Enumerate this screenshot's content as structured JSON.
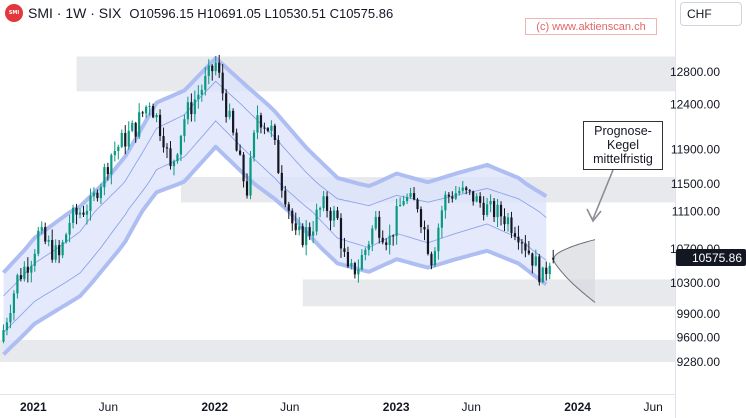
{
  "header": {
    "logo_text": "SMI",
    "symbol": "SMI · 1W · SIX",
    "ohlc": "O10596.15 H10691.05 L10530.51 C10575.86"
  },
  "watermark": "(c) www.aktienscan.ch",
  "currency_label": "CHF",
  "annotation": {
    "line1": "Prognose-",
    "line2": "Kegel",
    "line3": "mittelfristig"
  },
  "colors": {
    "up": "#089981",
    "down": "#131722",
    "band_fill": "#dbe3fb",
    "band_edge": "#aebef3",
    "zone": "#e4e5ea",
    "price_label_bg": "#131722"
  },
  "chart_data": {
    "type": "candlestick",
    "interval": "1W",
    "instrument": "SMI",
    "exchange": "SIX",
    "currency": "CHF",
    "last_price_label": "10575.86",
    "y_ticks": [
      "12800.00",
      "12400.00",
      "11900.00",
      "11500.00",
      "11100.00",
      "10700.00",
      "10300.00",
      "9900.00",
      "9600.00",
      "9280.00"
    ],
    "x_ticks": [
      "2021",
      "Jun",
      "2022",
      "Jun",
      "2023",
      "Jun",
      "2024",
      "Jun"
    ],
    "y_range": [
      9200,
      13400
    ],
    "x_range": [
      "2020-10-26",
      "2024-07-15"
    ],
    "close_path": [
      [
        "2020-11-02",
        9700
      ],
      [
        "2020-11-30",
        10350
      ],
      [
        "2020-12-28",
        10600
      ],
      [
        "2021-01-11",
        10850
      ],
      [
        "2021-02-22",
        10600
      ],
      [
        "2021-03-15",
        11000
      ],
      [
        "2021-04-26",
        11200
      ],
      [
        "2021-06-07",
        11850
      ],
      [
        "2021-07-26",
        12150
      ],
      [
        "2021-08-23",
        12450
      ],
      [
        "2021-09-20",
        12050
      ],
      [
        "2021-10-04",
        11650
      ],
      [
        "2021-11-01",
        12250
      ],
      [
        "2021-12-06",
        12600
      ],
      [
        "2022-01-03",
        12900
      ],
      [
        "2022-01-31",
        12200
      ],
      [
        "2022-03-07",
        11400
      ],
      [
        "2022-03-28",
        12300
      ],
      [
        "2022-04-25",
        12100
      ],
      [
        "2022-05-16",
        11500
      ],
      [
        "2022-06-13",
        10800
      ],
      [
        "2022-07-11",
        10900
      ],
      [
        "2022-08-08",
        11200
      ],
      [
        "2022-09-05",
        11000
      ],
      [
        "2022-09-26",
        10400
      ],
      [
        "2022-10-17",
        10500
      ],
      [
        "2022-11-21",
        11000
      ],
      [
        "2022-12-19",
        10800
      ],
      [
        "2023-01-16",
        11300
      ],
      [
        "2023-02-13",
        11200
      ],
      [
        "2023-03-13",
        10600
      ],
      [
        "2023-04-10",
        11300
      ],
      [
        "2023-05-08",
        11400
      ],
      [
        "2023-06-05",
        11300
      ],
      [
        "2023-07-03",
        11150
      ],
      [
        "2023-08-07",
        11050
      ],
      [
        "2023-09-04",
        10900
      ],
      [
        "2023-10-02",
        10600
      ],
      [
        "2023-10-23",
        10350
      ],
      [
        "2023-11-06",
        10600
      ],
      [
        "2023-11-13",
        10576
      ]
    ],
    "bands": {
      "center_path": [
        [
          "2020-11-02",
          9900
        ],
        [
          "2021-01-04",
          10300
        ],
        [
          "2021-04-05",
          10650
        ],
        [
          "2021-07-05",
          11300
        ],
        [
          "2021-09-06",
          11900
        ],
        [
          "2021-11-01",
          12050
        ],
        [
          "2022-01-03",
          12450
        ],
        [
          "2022-03-07",
          12100
        ],
        [
          "2022-05-02",
          11800
        ],
        [
          "2022-07-04",
          11400
        ],
        [
          "2022-09-05",
          11050
        ],
        [
          "2022-11-07",
          10950
        ],
        [
          "2023-01-02",
          11100
        ],
        [
          "2023-03-06",
          11000
        ],
        [
          "2023-05-01",
          11100
        ],
        [
          "2023-07-03",
          11200
        ],
        [
          "2023-09-04",
          11050
        ],
        [
          "2023-10-30",
          10800
        ]
      ],
      "half_width": 520
    },
    "zones": [
      {
        "start": "2021-03-29",
        "end": "2024-07-15",
        "low": 12560,
        "high": 12990
      },
      {
        "start": "2021-10-25",
        "end": "2024-07-15",
        "low": 11230,
        "high": 11580
      },
      {
        "start": "2022-06-27",
        "end": "2024-07-15",
        "low": 10000,
        "high": 10340
      },
      {
        "start": "2020-10-26",
        "end": "2024-07-15",
        "low": 9280,
        "high": 9570
      }
    ],
    "forecast_cone": {
      "start": "2023-11-13",
      "end": "2024-02-05",
      "start_price": 10576,
      "upper_end": 10800,
      "lower_end": 10050
    }
  }
}
